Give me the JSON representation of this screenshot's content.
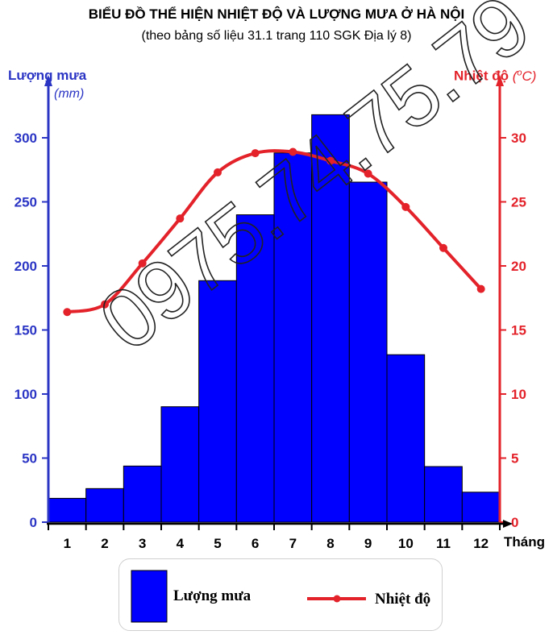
{
  "chart_data": {
    "type": "bar",
    "title": "BIỂU ĐỒ THỂ HIỆN NHIỆT ĐỘ VÀ LƯỢNG MƯA Ở HÀ NỘI",
    "subtitle": "(theo bảng số liệu 31.1 trang 110 SGK Địa lý 8)",
    "xlabel": "Tháng",
    "categories": [
      "1",
      "2",
      "3",
      "4",
      "5",
      "6",
      "7",
      "8",
      "9",
      "10",
      "11",
      "12"
    ],
    "y_left": {
      "label": "Lượng mưa",
      "unit": "(mm)",
      "ylim": [
        0,
        330
      ],
      "ticks": [
        0,
        50,
        100,
        150,
        200,
        250,
        300
      ]
    },
    "y_right": {
      "label": "Nhiệt độ",
      "unit_prefix": "(",
      "unit_sup": "o",
      "unit_suffix": "C)",
      "ylim": [
        0,
        33
      ],
      "ticks": [
        0,
        5,
        10,
        15,
        20,
        25,
        30
      ]
    },
    "series": [
      {
        "name": "Lượng mưa",
        "kind": "bar",
        "axis": "left",
        "color": "#0000ff",
        "values": [
          18.6,
          26.2,
          43.8,
          90.1,
          188.5,
          239.9,
          288.2,
          318.0,
          265.4,
          130.7,
          43.4,
          23.4
        ]
      },
      {
        "name": "Nhiệt độ",
        "kind": "line",
        "axis": "right",
        "color": "#e3222a",
        "values": [
          16.4,
          17.0,
          20.2,
          23.7,
          27.3,
          28.8,
          28.9,
          28.2,
          27.2,
          24.6,
          21.4,
          18.2
        ]
      }
    ]
  },
  "colors": {
    "left_axis": "#2b35c4",
    "right_axis": "#e3222a",
    "bar_fill": "#0000ff"
  },
  "watermark": "0975.74.75.79",
  "legend": {
    "rain": "Lượng mưa",
    "temp": "Nhiệt độ"
  }
}
